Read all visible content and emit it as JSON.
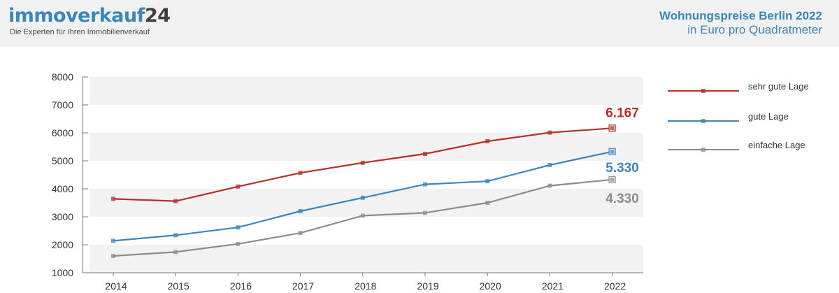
{
  "header": {
    "logo_part1": "immoverkauf",
    "logo_part2": "24",
    "tagline": "Die Experten für Ihren Immobilienverkauf",
    "title_line1": "Wohnungspreise Berlin 2022",
    "title_line2": "in Euro pro Quadratmeter"
  },
  "chart_data": {
    "type": "line",
    "title": "Wohnungspreise Berlin 2022",
    "subtitle": "in Euro pro Quadratmeter",
    "xlabel": "",
    "ylabel": "",
    "x": [
      "2014",
      "2015",
      "2016",
      "2017",
      "2018",
      "2019",
      "2020",
      "2021",
      "2022"
    ],
    "ylim": [
      1000,
      8000
    ],
    "yticks": [
      1000,
      2000,
      3000,
      4000,
      5000,
      6000,
      7000,
      8000
    ],
    "grid": "alternating horizontal bands",
    "legend_position": "right",
    "series": [
      {
        "name": "sehr gute Lage",
        "color": "#b5302a",
        "values": [
          3640,
          3560,
          4080,
          4570,
          4930,
          5250,
          5700,
          6010,
          6167
        ],
        "end_label": "6.167"
      },
      {
        "name": "gute Lage",
        "color": "#3b86bb",
        "values": [
          2140,
          2340,
          2620,
          3200,
          3680,
          4160,
          4270,
          4850,
          5330
        ],
        "end_label": "5.330"
      },
      {
        "name": "einfache Lage",
        "color": "#8c8c8c",
        "values": [
          1600,
          1740,
          2030,
          2420,
          3040,
          3140,
          3500,
          4110,
          4330
        ],
        "end_label": "4.330"
      }
    ]
  }
}
